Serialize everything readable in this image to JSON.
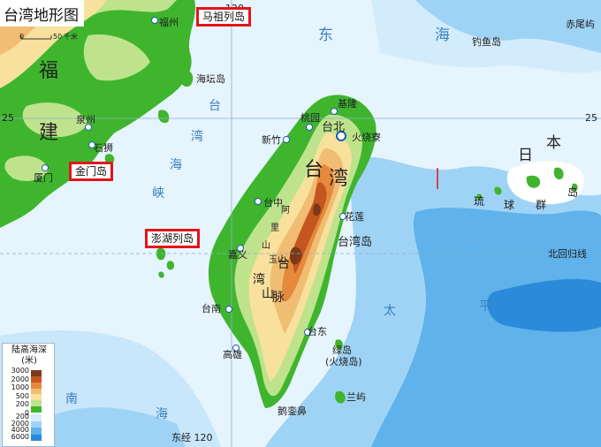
{
  "map": {
    "title": "台湾地形图",
    "scale": {
      "zero": "0",
      "value": "50",
      "unit": "千米"
    },
    "graticule": {
      "lat_left": "25",
      "lat_right": "25",
      "lon_top": "120",
      "lon_bottom": "东经 120",
      "tropic": "北回归线"
    },
    "seas": {
      "east_sea_1": "东",
      "east_sea_2": "海",
      "strait_1": "台",
      "strait_2": "湾",
      "strait_3": "海",
      "strait_4": "峡",
      "pacific_1": "太",
      "pacific_2": "平",
      "south_1": "南",
      "south_2": "海"
    },
    "regions": {
      "fujian_1": "福",
      "fujian_2": "建",
      "taiwan_1": "台",
      "taiwan_2": "湾",
      "taiwan_island": "台湾岛",
      "japan_1": "日",
      "japan_2": "本",
      "ryukyu_1": "琉",
      "ryukyu_2": "球",
      "ryukyu_3": "群",
      "ryukyu_4": "岛"
    },
    "mountains": {
      "central_1": "台",
      "central_2": "湾",
      "central_3": "山",
      "central_4": "脉",
      "yushan": "玉山",
      "alishan_1": "阿",
      "alishan_2": "里",
      "alishan_3": "山"
    },
    "cities": {
      "fuzhou": "福州",
      "quanzhou": "泉州",
      "shishi": "石狮",
      "xiamen": "厦门",
      "keelung": "基隆",
      "taoyuan": "桃园",
      "taipei": "台北",
      "hsinchu": "新竹",
      "taichung": "台中",
      "chiayi": "嘉义",
      "tainan": "台南",
      "kaohsiung": "高雄",
      "hualien": "花莲",
      "taitung": "台东",
      "chuhuoliao": "火烧寮"
    },
    "islands": {
      "haitan": "海坛岛",
      "diaoyu": "钓鱼岛",
      "chiwei": "赤尾屿",
      "lvdao": "绿岛",
      "lvdao_alt": "(火烧岛)",
      "lanyu": "兰屿",
      "eluanbi": "鹅銮鼻"
    },
    "highlighted": {
      "matsu": "马祖列岛",
      "kinmen": "金门岛",
      "penghu": "澎湖列岛"
    },
    "legend": {
      "title": "陆高海深 (米)",
      "land_ticks": [
        "3000",
        "2000",
        "1000",
        "500",
        "200",
        "0"
      ],
      "sea_ticks": [
        "200",
        "2000",
        "4000",
        "6000"
      ],
      "colors": {
        "land": [
          "#7a3a1a",
          "#c4561f",
          "#e58a3c",
          "#f1bd73",
          "#f7e19c",
          "#bfe38d",
          "#3fb52e"
        ],
        "sea": [
          "#d6eefc",
          "#9fd3f5",
          "#5fb2ea",
          "#2b8ad9"
        ]
      }
    }
  }
}
